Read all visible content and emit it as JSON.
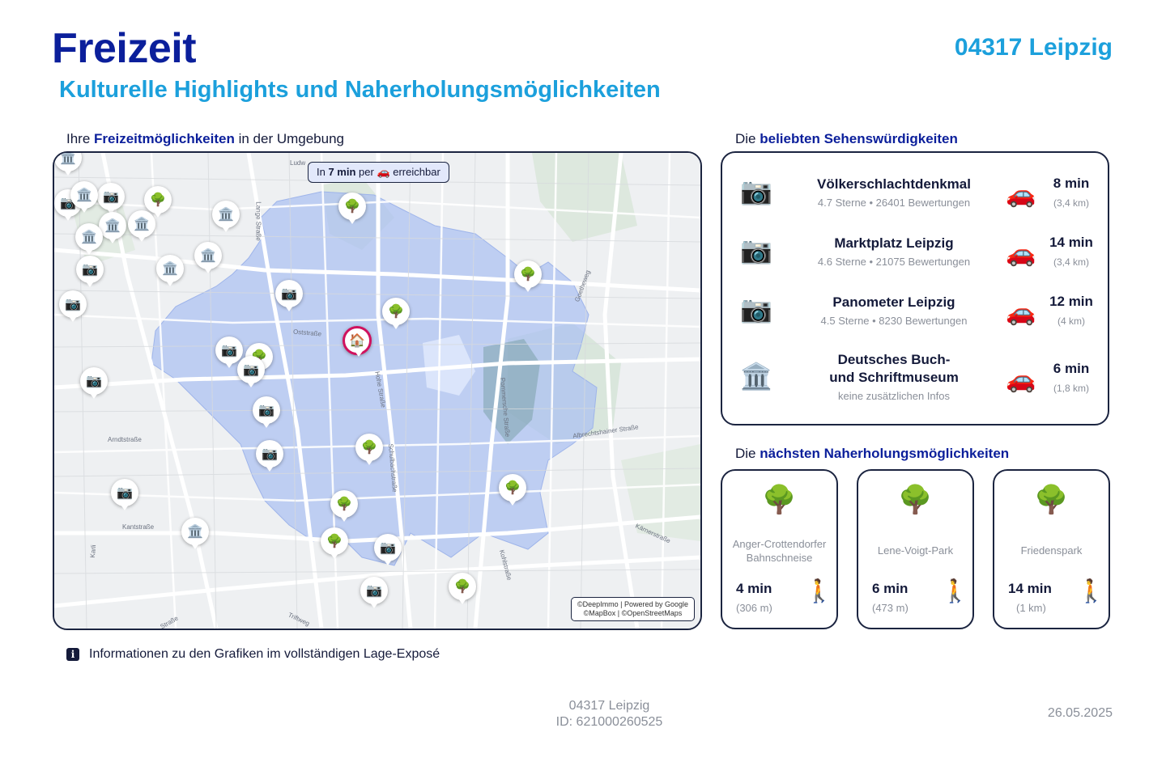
{
  "header": {
    "title": "Freizeit",
    "location": "04317 Leipzig",
    "subtitle": "Kulturelle Highlights und Naherholungsmöglichkeiten"
  },
  "map_section": {
    "heading_prefix": "Ihre ",
    "heading_bold": "Freizeitmöglichkeiten",
    "heading_suffix": " in der Umgebung",
    "reach_prefix": "In ",
    "reach_time": "7 min",
    "reach_middle": " per ",
    "reach_suffix": " erreichbar",
    "attribution_line1": "©DeepImmo | Powered by Google",
    "attribution_line2": "©MapBox | ©OpenStreetMaps",
    "street_labels": [
      "Ludw",
      "Lange Straße",
      "Oststraße",
      "Hohe Straße",
      "Pommersche Straße",
      "Albrechtshainer Straße",
      "Schulbachstraße",
      "Arndtstraße",
      "Kantstraße",
      "Kärnerstraße",
      "Kohlstraße",
      "Triftweg",
      "Straße",
      "Karli",
      "Goetheweg"
    ]
  },
  "sights_section": {
    "heading_prefix": "Die ",
    "heading_bold": "beliebten Sehenswürdigkeiten",
    "items": [
      {
        "icon": "camera-icon",
        "name": "Völkerschlachtdenkmal",
        "info": "4.7 Sterne • 26401 Bewertungen",
        "time": "8 min",
        "distance": "(3,4 km)"
      },
      {
        "icon": "camera-icon",
        "name": "Marktplatz Leipzig",
        "info": "4.6 Sterne • 21075 Bewertungen",
        "time": "14 min",
        "distance": "(3,4 km)"
      },
      {
        "icon": "camera-icon",
        "name": "Panometer Leipzig",
        "info": "4.5 Sterne • 8230 Bewertungen",
        "time": "12 min",
        "distance": "(4 km)"
      },
      {
        "icon": "museum-icon",
        "name_line1": "Deutsches Buch-",
        "name_line2": "und Schriftmuseum",
        "info": "keine zusätzlichen Infos",
        "time": "6 min",
        "distance": "(1,8 km)"
      }
    ]
  },
  "parks_section": {
    "heading_prefix": "Die ",
    "heading_bold": "nächsten Naherholungsmöglichkeiten",
    "items": [
      {
        "icon": "tree-icon",
        "name_line1": "Anger-Crottendorfer",
        "name_line2": "Bahnschneise",
        "time": "4 min",
        "distance": "(306 m)"
      },
      {
        "icon": "tree-icon",
        "name_line1": "Lene-Voigt-Park",
        "name_line2": "",
        "time": "6 min",
        "distance": "(473 m)"
      },
      {
        "icon": "tree-icon",
        "name_line1": "Friedenspark",
        "name_line2": "",
        "time": "14 min",
        "distance": "(1 km)"
      }
    ]
  },
  "info_note": "Informationen zu den Grafiken im vollständigen Lage-Exposé",
  "footer": {
    "location": "04317 Leipzig",
    "id": "ID: 621000260525",
    "date": "26.05.2025"
  },
  "colors": {
    "title": "#0b1f9b",
    "accent": "#1ca0dc",
    "frame": "#1b2440",
    "isochrone": "#a9bff2",
    "home_pin": "#d0115e"
  }
}
